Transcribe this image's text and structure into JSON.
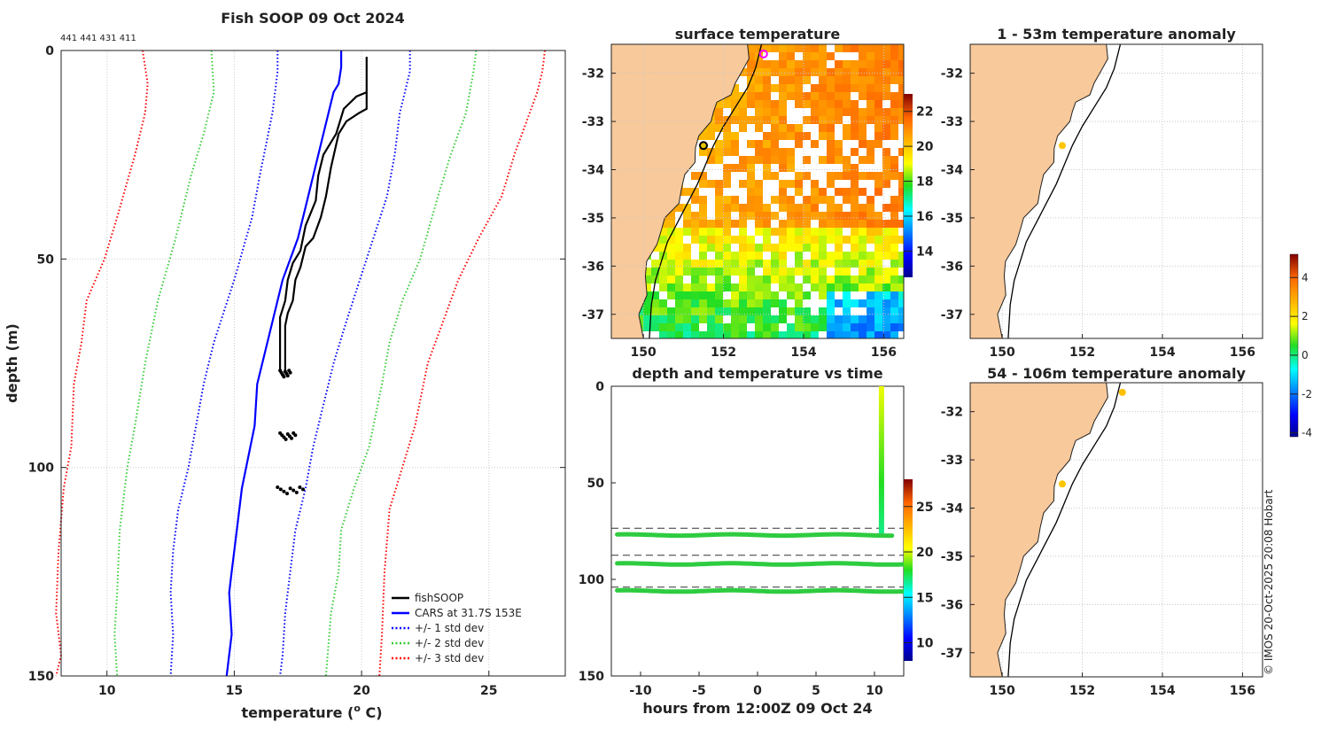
{
  "page": {
    "credit": "© IMOS 20-Oct-2025 20:08 Hobart"
  },
  "colors": {
    "land": "#f8c99b",
    "fish": "#000000",
    "cars": "#0000ff",
    "sd1": "#0000ff",
    "sd2": "#33cc33",
    "sd3": "#ff0000"
  },
  "chart_data": [
    {
      "id": "profile",
      "type": "line",
      "title": "Fish SOOP 09 Oct 2024",
      "subtitle": "441 441 431 411",
      "xlabel": "temperature (",
      "xlabel_sup": "o",
      "xlabel_tail": " C)",
      "ylabel": "depth (m)",
      "xlim": [
        8.2,
        28
      ],
      "ylim": [
        0,
        150
      ],
      "y_reversed": true,
      "xticks": [
        10,
        15,
        20,
        25
      ],
      "yticks": [
        0,
        50,
        100,
        150
      ],
      "legend": {
        "position": "bottom-right",
        "entries": [
          "fishSOOP",
          "CARS at 31.7S 153E",
          "+/- 1 std dev",
          "+/- 2 std dev",
          "+/- 3 std dev"
        ]
      },
      "series": [
        {
          "name": "CARS",
          "style": "solid",
          "color": "cars",
          "points": [
            [
              19.2,
              0
            ],
            [
              19.2,
              4
            ],
            [
              19.1,
              8
            ],
            [
              18.9,
              10
            ],
            [
              18.5,
              20
            ],
            [
              17.9,
              35
            ],
            [
              17.5,
              45
            ],
            [
              16.9,
              55
            ],
            [
              16.3,
              70
            ],
            [
              15.9,
              80
            ],
            [
              15.8,
              90
            ],
            [
              15.3,
              105
            ],
            [
              15.1,
              115
            ],
            [
              14.9,
              125
            ],
            [
              14.8,
              130
            ],
            [
              14.9,
              140
            ],
            [
              14.7,
              150
            ]
          ]
        },
        {
          "name": "+1sd",
          "style": "dot",
          "color": "sd1",
          "points": [
            [
              21.9,
              0
            ],
            [
              21.9,
              5
            ],
            [
              21.5,
              15
            ],
            [
              21.3,
              25
            ],
            [
              21,
              35
            ],
            [
              20.2,
              50
            ],
            [
              19.4,
              65
            ],
            [
              18.9,
              75
            ],
            [
              18.5,
              85
            ],
            [
              18.1,
              95
            ],
            [
              17.8,
              105
            ],
            [
              17.4,
              115
            ],
            [
              17.2,
              125
            ],
            [
              17.0,
              135
            ],
            [
              16.9,
              145
            ],
            [
              16.8,
              150
            ]
          ]
        },
        {
          "name": "-1sd",
          "style": "dot",
          "color": "sd1",
          "points": [
            [
              16.7,
              0
            ],
            [
              16.7,
              5
            ],
            [
              16.5,
              15
            ],
            [
              16.0,
              30
            ],
            [
              15.7,
              40
            ],
            [
              15.0,
              55
            ],
            [
              14.2,
              70
            ],
            [
              13.8,
              80
            ],
            [
              13.5,
              90
            ],
            [
              13.2,
              100
            ],
            [
              12.8,
              110
            ],
            [
              12.6,
              120
            ],
            [
              12.5,
              130
            ],
            [
              12.6,
              140
            ],
            [
              12.5,
              150
            ]
          ]
        },
        {
          "name": "+2sd",
          "style": "dot",
          "color": "sd2",
          "points": [
            [
              24.5,
              0
            ],
            [
              24.4,
              5
            ],
            [
              24.1,
              15
            ],
            [
              23.5,
              25
            ],
            [
              23.0,
              35
            ],
            [
              22.3,
              50
            ],
            [
              21.6,
              60
            ],
            [
              21.1,
              70
            ],
            [
              20.8,
              80
            ],
            [
              20.3,
              95
            ],
            [
              19.7,
              105
            ],
            [
              19.2,
              115
            ],
            [
              19.1,
              125
            ],
            [
              18.8,
              135
            ],
            [
              18.6,
              150
            ]
          ]
        },
        {
          "name": "-2sd",
          "style": "dot",
          "color": "sd2",
          "points": [
            [
              14.1,
              0
            ],
            [
              14.2,
              10
            ],
            [
              13.8,
              20
            ],
            [
              13.3,
              30
            ],
            [
              12.7,
              45
            ],
            [
              12.0,
              60
            ],
            [
              11.5,
              75
            ],
            [
              11.1,
              90
            ],
            [
              10.8,
              100
            ],
            [
              10.5,
              115
            ],
            [
              10.4,
              130
            ],
            [
              10.3,
              140
            ],
            [
              10.4,
              150
            ]
          ]
        },
        {
          "name": "+3sd",
          "style": "dot",
          "color": "sd3",
          "points": [
            [
              27.2,
              0
            ],
            [
              27.1,
              5
            ],
            [
              26.9,
              10
            ],
            [
              26.0,
              25
            ],
            [
              25.5,
              35
            ],
            [
              24.6,
              45
            ],
            [
              23.8,
              55
            ],
            [
              23.2,
              65
            ],
            [
              22.6,
              75
            ],
            [
              22.1,
              90
            ],
            [
              21.6,
              100
            ],
            [
              21.1,
              110
            ],
            [
              20.9,
              125
            ],
            [
              20.8,
              140
            ],
            [
              20.7,
              150
            ]
          ]
        },
        {
          "name": "-3sd",
          "style": "dot",
          "color": "sd3",
          "points": [
            [
              11.4,
              0
            ],
            [
              11.6,
              8
            ],
            [
              11.5,
              15
            ],
            [
              11.1,
              25
            ],
            [
              10.4,
              40
            ],
            [
              9.9,
              50
            ],
            [
              9.2,
              60
            ],
            [
              9.0,
              70
            ],
            [
              8.7,
              80
            ],
            [
              8.6,
              95
            ],
            [
              8.3,
              105
            ],
            [
              8.1,
              120
            ],
            [
              8.0,
              135
            ],
            [
              8.2,
              145
            ],
            [
              8.0,
              150
            ]
          ]
        },
        {
          "name": "fishSOOP",
          "style": "solid",
          "color": "fish",
          "points": [
            [
              20.2,
              1.5
            ],
            [
              20.2,
              14
            ],
            [
              19.9,
              15
            ],
            [
              19.4,
              17
            ],
            [
              19.1,
              20
            ],
            [
              18.8,
              28
            ],
            [
              18.6,
              35
            ],
            [
              18.4,
              40
            ],
            [
              18.1,
              45
            ],
            [
              17.8,
              47
            ],
            [
              17.6,
              52
            ],
            [
              17.4,
              55
            ],
            [
              17.3,
              60
            ],
            [
              17.1,
              63
            ],
            [
              17.0,
              66
            ],
            [
              17.0,
              72
            ],
            [
              17.0,
              77
            ]
          ]
        },
        {
          "name": "fishSOOP-b",
          "style": "solid",
          "color": "fish",
          "points": [
            [
              20.2,
              10
            ],
            [
              19.8,
              11
            ],
            [
              19.3,
              14
            ],
            [
              19.0,
              20
            ],
            [
              18.5,
              25
            ],
            [
              18.3,
              30
            ],
            [
              18.2,
              36
            ],
            [
              17.8,
              42
            ],
            [
              17.6,
              48
            ],
            [
              17.3,
              51
            ],
            [
              17.1,
              55
            ],
            [
              17.0,
              60
            ],
            [
              16.8,
              64
            ],
            [
              16.8,
              72
            ],
            [
              16.8,
              77
            ]
          ]
        }
      ],
      "clusters": [
        {
          "x": [
            16.8,
            17.2
          ],
          "y": 77.5
        },
        {
          "x": [
            16.8,
            17.4
          ],
          "y": 92.5
        },
        {
          "x": [
            16.7,
            17.7
          ],
          "y": 105.5
        }
      ]
    },
    {
      "id": "sst",
      "type": "heatmap",
      "title": "surface temperature",
      "xlim": [
        149.2,
        156.5
      ],
      "ylim": [
        -37.5,
        -31.4
      ],
      "xticks": [
        150,
        152,
        154,
        156
      ],
      "yticks": [
        -32,
        -33,
        -34,
        -35,
        -36,
        -37
      ],
      "colorbar": {
        "ticks": [
          14,
          16,
          18,
          20,
          22
        ],
        "min": 12.5,
        "max": 23
      },
      "markers": [
        {
          "lon": 153.0,
          "lat": -31.6,
          "color": "#ff00ff"
        },
        {
          "lon": 151.5,
          "lat": -33.5,
          "color": "#000"
        }
      ]
    },
    {
      "id": "anom1",
      "type": "heatmap",
      "title": "1 - 53m temperature anomaly",
      "xlim": [
        149.2,
        156.5
      ],
      "ylim": [
        -37.5,
        -31.4
      ],
      "xticks": [
        150,
        152,
        154,
        156
      ],
      "yticks": [
        -32,
        -33,
        -34,
        -35,
        -36,
        -37
      ],
      "points": [
        {
          "lon": 151.5,
          "lat": -33.5,
          "value": 2.5
        }
      ]
    },
    {
      "id": "anom2",
      "type": "heatmap",
      "title": "54 - 106m temperature anomaly",
      "xlim": [
        149.2,
        156.5
      ],
      "ylim": [
        -37.5,
        -31.4
      ],
      "xticks": [
        150,
        152,
        154,
        156
      ],
      "yticks": [
        -32,
        -33,
        -34,
        -35,
        -36,
        -37
      ],
      "points": [
        {
          "lon": 153.0,
          "lat": -31.6,
          "value": 2.6
        },
        {
          "lon": 151.5,
          "lat": -33.5,
          "value": 2.5
        }
      ],
      "colorbar": {
        "ticks": [
          -4,
          -2,
          0,
          2,
          4
        ],
        "min": -4.2,
        "max": 5.2
      }
    },
    {
      "id": "timeseries",
      "type": "scatter",
      "title": "depth and temperature vs time",
      "xlabel": "hours from 12:00Z 09 Oct 24",
      "xlim": [
        -12.5,
        12.5
      ],
      "ylim": [
        0,
        150
      ],
      "y_reversed": true,
      "xticks": [
        -10,
        -5,
        0,
        5,
        10
      ],
      "yticks": [
        0,
        50,
        100,
        150
      ],
      "dashed_depths": [
        73.5,
        87.5,
        104
      ],
      "tracks": [
        {
          "depth": 77,
          "t0": -12,
          "t1": 11.5
        },
        {
          "depth": 92,
          "t0": -12,
          "t1": 12.5
        },
        {
          "depth": 106,
          "t0": -12,
          "t1": 12.5
        }
      ],
      "cast": {
        "t": 10.6,
        "d0": 0,
        "d1": 76
      },
      "colorbar": {
        "ticks": [
          10,
          15,
          20,
          25
        ],
        "min": 8,
        "max": 28
      }
    }
  ]
}
